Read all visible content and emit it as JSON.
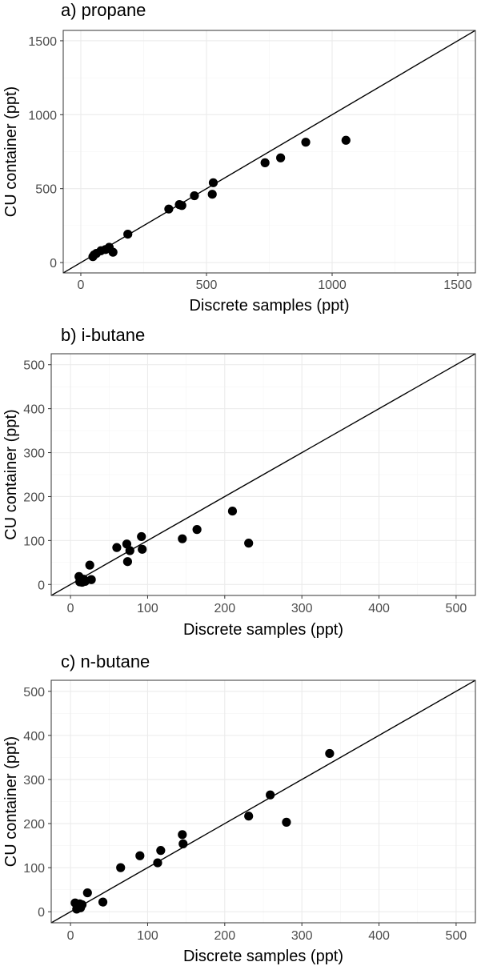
{
  "chart_data": [
    {
      "type": "scatter",
      "title": "a) propane",
      "xlabel": "Discrete samples (ppt)",
      "ylabel": "CU container (ppt)",
      "xlim": [
        -70,
        1570
      ],
      "ylim": [
        -70,
        1570
      ],
      "ticks": [
        0,
        500,
        1000,
        1500
      ],
      "tick_labels": [
        "0",
        "500",
        "1000",
        "1500"
      ],
      "identity_line": true,
      "grid": true,
      "points": [
        {
          "x": 48,
          "y": 40
        },
        {
          "x": 53,
          "y": 52
        },
        {
          "x": 62,
          "y": 62
        },
        {
          "x": 80,
          "y": 80
        },
        {
          "x": 98,
          "y": 88
        },
        {
          "x": 113,
          "y": 103
        },
        {
          "x": 128,
          "y": 70
        },
        {
          "x": 187,
          "y": 192
        },
        {
          "x": 350,
          "y": 362
        },
        {
          "x": 392,
          "y": 392
        },
        {
          "x": 402,
          "y": 386
        },
        {
          "x": 452,
          "y": 452
        },
        {
          "x": 523,
          "y": 462
        },
        {
          "x": 527,
          "y": 540
        },
        {
          "x": 733,
          "y": 675
        },
        {
          "x": 795,
          "y": 708
        },
        {
          "x": 895,
          "y": 814
        },
        {
          "x": 1055,
          "y": 827
        }
      ]
    },
    {
      "type": "scatter",
      "title": "b) i-butane",
      "xlabel": "Discrete samples (ppt)",
      "ylabel": "CU container (ppt)",
      "xlim": [
        -25,
        525
      ],
      "ylim": [
        -25,
        525
      ],
      "ticks": [
        0,
        100,
        200,
        300,
        400,
        500
      ],
      "tick_labels": [
        "0",
        "100",
        "200",
        "300",
        "400",
        "500"
      ],
      "identity_line": true,
      "grid": true,
      "points": [
        {
          "x": 11,
          "y": 18
        },
        {
          "x": 12,
          "y": 6
        },
        {
          "x": 13,
          "y": 10
        },
        {
          "x": 15,
          "y": 5
        },
        {
          "x": 17,
          "y": 12
        },
        {
          "x": 19,
          "y": 7
        },
        {
          "x": 25,
          "y": 44
        },
        {
          "x": 27,
          "y": 11
        },
        {
          "x": 60,
          "y": 84
        },
        {
          "x": 73,
          "y": 92
        },
        {
          "x": 74,
          "y": 52
        },
        {
          "x": 77,
          "y": 77
        },
        {
          "x": 92,
          "y": 109
        },
        {
          "x": 93,
          "y": 80
        },
        {
          "x": 145,
          "y": 104
        },
        {
          "x": 164,
          "y": 125
        },
        {
          "x": 210,
          "y": 167
        },
        {
          "x": 231,
          "y": 94
        }
      ]
    },
    {
      "type": "scatter",
      "title": "c) n-butane",
      "xlabel": "Discrete samples (ppt)",
      "ylabel": "CU container (ppt)",
      "xlim": [
        -25,
        525
      ],
      "ylim": [
        -25,
        525
      ],
      "ticks": [
        0,
        100,
        200,
        300,
        400,
        500
      ],
      "tick_labels": [
        "0",
        "100",
        "200",
        "300",
        "400",
        "500"
      ],
      "identity_line": true,
      "grid": true,
      "points": [
        {
          "x": 6,
          "y": 20
        },
        {
          "x": 8,
          "y": 6
        },
        {
          "x": 10,
          "y": 11
        },
        {
          "x": 12,
          "y": 18
        },
        {
          "x": 13,
          "y": 9
        },
        {
          "x": 15,
          "y": 16
        },
        {
          "x": 22,
          "y": 43
        },
        {
          "x": 42,
          "y": 22
        },
        {
          "x": 65,
          "y": 100
        },
        {
          "x": 90,
          "y": 127
        },
        {
          "x": 113,
          "y": 111
        },
        {
          "x": 117,
          "y": 139
        },
        {
          "x": 145,
          "y": 175
        },
        {
          "x": 146,
          "y": 154
        },
        {
          "x": 231,
          "y": 217
        },
        {
          "x": 259,
          "y": 265
        },
        {
          "x": 280,
          "y": 203
        },
        {
          "x": 336,
          "y": 359
        }
      ]
    }
  ]
}
